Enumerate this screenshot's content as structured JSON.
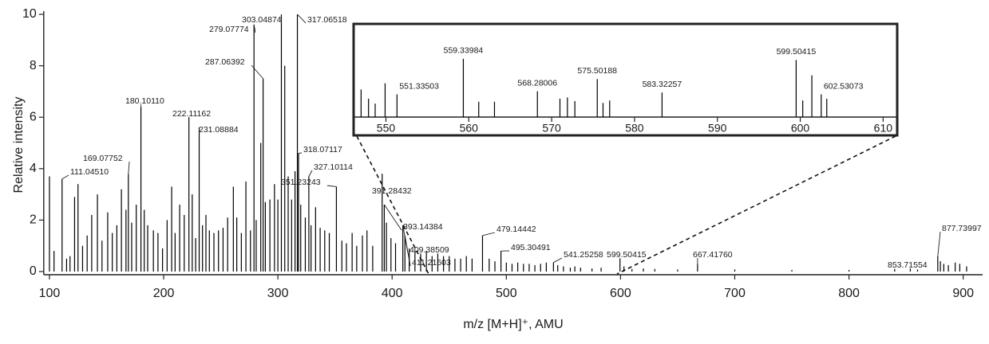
{
  "chart_data": [
    {
      "type": "spectrum",
      "ylabel": "Relative intensity",
      "xlabel": "m/z [M+H]⁺, AMU",
      "xlim": [
        95,
        917
      ],
      "ylim": [
        0,
        10
      ],
      "xticks": [
        100,
        200,
        300,
        400,
        500,
        600,
        700,
        800,
        900
      ],
      "yticks": [
        0,
        2,
        4,
        6,
        8,
        10
      ],
      "series": [
        {
          "color": "#000000",
          "x": [
            111.0451,
            169.07752,
            180.1011,
            222.11162,
            231.08884,
            279.07774,
            287.06392,
            303.04874,
            317.06518,
            318.07117,
            327.10114,
            351.23243,
            391.28432,
            393.14384,
            409.38509,
            411.21603,
            479.14442,
            495.30491,
            541.25258,
            599.50415,
            667.4176,
            853.71554,
            877.73997
          ],
          "values": [
            3.6,
            3.8,
            6.4,
            6.0,
            5.6,
            9.6,
            7.5,
            10,
            10,
            4.6,
            3.7,
            3.3,
            3.8,
            2.6,
            1.8,
            1.4,
            1.4,
            0.8,
            0.35,
            0.5,
            0.3,
            0.1,
            0.6
          ],
          "labels": [
            "111.04510",
            "169.07752",
            "180.10110",
            "222.11162",
            "231.08884",
            "279.07774",
            "287.06392",
            "303.04874",
            "317.06518",
            "318.07117",
            "327.10114",
            "351.23243",
            "391.28432",
            "393.14384",
            "409.38509",
            "411.21603",
            "479.14442",
            "495.30491",
            "541.25258",
            "599.50415",
            "667.41760",
            "853.71554",
            "877.73997"
          ]
        },
        {
          "color": "#000000",
          "x": [
            100,
            104,
            115,
            118,
            122,
            125,
            129,
            133,
            137,
            142,
            146,
            151,
            155,
            159,
            163,
            167,
            172,
            176,
            183,
            186,
            191,
            195,
            199,
            203,
            207,
            210,
            214,
            218,
            225,
            228,
            234,
            237,
            240,
            244,
            248,
            252,
            256,
            261,
            264,
            268,
            272,
            276,
            281,
            285,
            289,
            293,
            297,
            300,
            306,
            309,
            312,
            315,
            320,
            324,
            329,
            333,
            337,
            341,
            345,
            356,
            360,
            365,
            369,
            374,
            378,
            383,
            395,
            399,
            403,
            415,
            420,
            425,
            430,
            435,
            440,
            445,
            450,
            455,
            460,
            465,
            470,
            485,
            490,
            500,
            505,
            510,
            515,
            520,
            525,
            530,
            535,
            545,
            550,
            556,
            560,
            565,
            575,
            583,
            603,
            610,
            620,
            630,
            650,
            700,
            750,
            800,
            840,
            860,
            880,
            883,
            887,
            893,
            897,
            903
          ],
          "values": [
            3.7,
            0.8,
            0.5,
            0.6,
            2.9,
            3.4,
            1.0,
            1.4,
            2.2,
            3.0,
            1.2,
            2.3,
            1.5,
            1.8,
            3.2,
            2.4,
            1.9,
            2.6,
            2.4,
            1.8,
            1.6,
            1.5,
            0.9,
            2.0,
            3.3,
            1.5,
            2.6,
            2.2,
            3.0,
            1.3,
            1.8,
            2.2,
            1.6,
            1.5,
            1.6,
            1.7,
            2.1,
            3.3,
            2.1,
            1.5,
            3.5,
            1.6,
            2.0,
            5.0,
            2.7,
            2.8,
            3.4,
            2.8,
            8.0,
            3.7,
            2.8,
            3.9,
            2.6,
            2.1,
            1.8,
            2.5,
            1.7,
            1.6,
            1.5,
            1.2,
            1.1,
            1.5,
            1.0,
            1.4,
            1.6,
            1.0,
            1.9,
            1.3,
            1.1,
            0.9,
            0.8,
            0.7,
            0.8,
            0.6,
            0.7,
            0.6,
            0.6,
            0.5,
            0.5,
            0.6,
            0.5,
            0.5,
            0.4,
            0.35,
            0.3,
            0.35,
            0.3,
            0.3,
            0.25,
            0.3,
            0.35,
            0.25,
            0.2,
            0.15,
            0.2,
            0.15,
            0.12,
            0.15,
            0.2,
            0.1,
            0.12,
            0.1,
            0.08,
            0.08,
            0.06,
            0.06,
            0.1,
            0.08,
            0.4,
            0.3,
            0.25,
            0.35,
            0.3,
            0.2
          ]
        }
      ]
    },
    {
      "type": "spectrum",
      "xlim": [
        546.1,
        611.7
      ],
      "ylim": [
        0,
        1
      ],
      "xticks": [
        550,
        560,
        570,
        580,
        590,
        600,
        610
      ],
      "series": [
        {
          "color": "#000000",
          "x": [
            547.0,
            547.9,
            548.7,
            549.9,
            551.33503,
            559.33984,
            561.2,
            563.1,
            568.28006,
            571.0,
            571.9,
            572.8,
            575.50188,
            576.2,
            577.0,
            583.32257,
            599.50415,
            600.3,
            601.4,
            602.53073,
            603.2
          ],
          "values": [
            0.45,
            0.3,
            0.22,
            0.55,
            0.37,
            0.95,
            0.25,
            0.25,
            0.42,
            0.3,
            0.32,
            0.26,
            0.62,
            0.23,
            0.27,
            0.4,
            0.93,
            0.27,
            0.68,
            0.37,
            0.3
          ],
          "labels": [
            null,
            null,
            null,
            null,
            "551.33503",
            "559.33984",
            null,
            null,
            "568.28006",
            null,
            null,
            null,
            "575.50188",
            null,
            null,
            "583.32257",
            "599.50415",
            null,
            null,
            "602.53073",
            null
          ]
        }
      ]
    }
  ]
}
